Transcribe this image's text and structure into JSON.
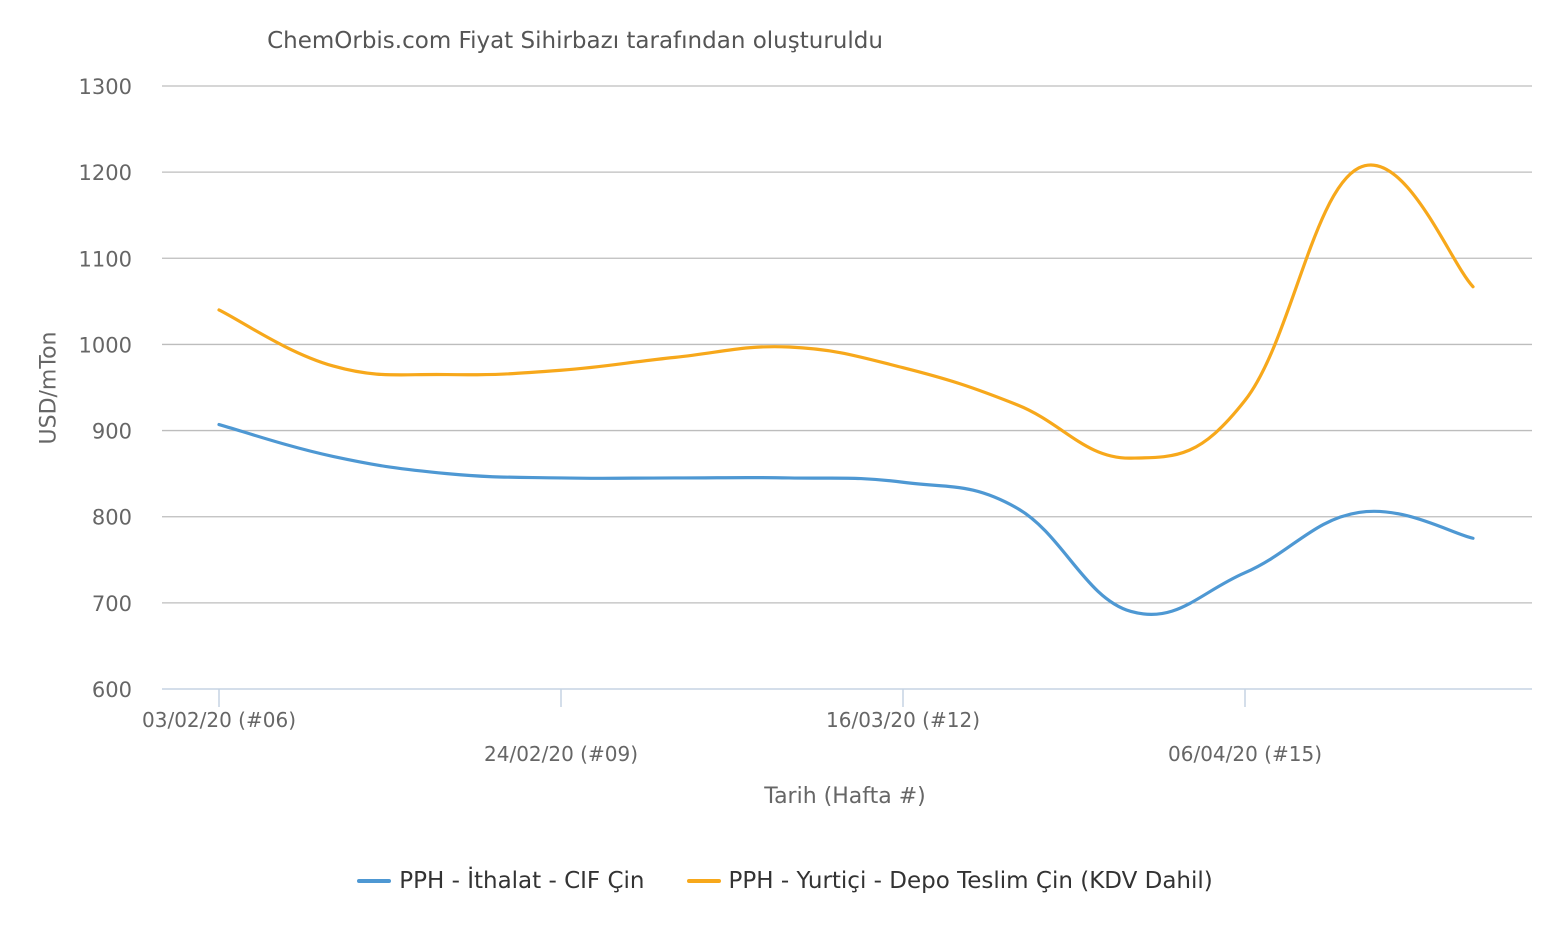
{
  "chart_data": {
    "type": "line",
    "title": "ChemOrbis.com Fiyat Sihirbazı tarafından oluşturuldu",
    "xlabel": "Tarih (Hafta #)",
    "ylabel": "USD/mTon",
    "ylim": [
      600,
      1300
    ],
    "yticks": [
      "600",
      "700",
      "800",
      "900",
      "1000",
      "1100",
      "1200",
      "1300"
    ],
    "grid": true,
    "legend_position": "bottom",
    "xtick_labels": [
      {
        "week": 6,
        "label": "03/02/20 (#06)"
      },
      {
        "week": 9,
        "label": "24/02/20 (#09)"
      },
      {
        "week": 12,
        "label": "16/03/20 (#12)"
      },
      {
        "week": 15,
        "label": "06/04/20 (#15)"
      }
    ],
    "x": [
      6,
      7,
      8,
      9,
      10,
      11,
      12,
      13,
      14,
      15,
      16,
      17
    ],
    "series": [
      {
        "name": "PPH - İthalat - CIF Çin",
        "color": "#4E98D3",
        "values": [
          907,
          870,
          850,
          845,
          845,
          845,
          840,
          810,
          690,
          735,
          805,
          775
        ]
      },
      {
        "name": "PPH - Yurtiçi - Depo Teslim Çin  (KDV Dahil)",
        "color": "#F7A81B",
        "values": [
          1040,
          975,
          965,
          970,
          985,
          997,
          973,
          930,
          868,
          935,
          1205,
          1067
        ]
      }
    ]
  }
}
